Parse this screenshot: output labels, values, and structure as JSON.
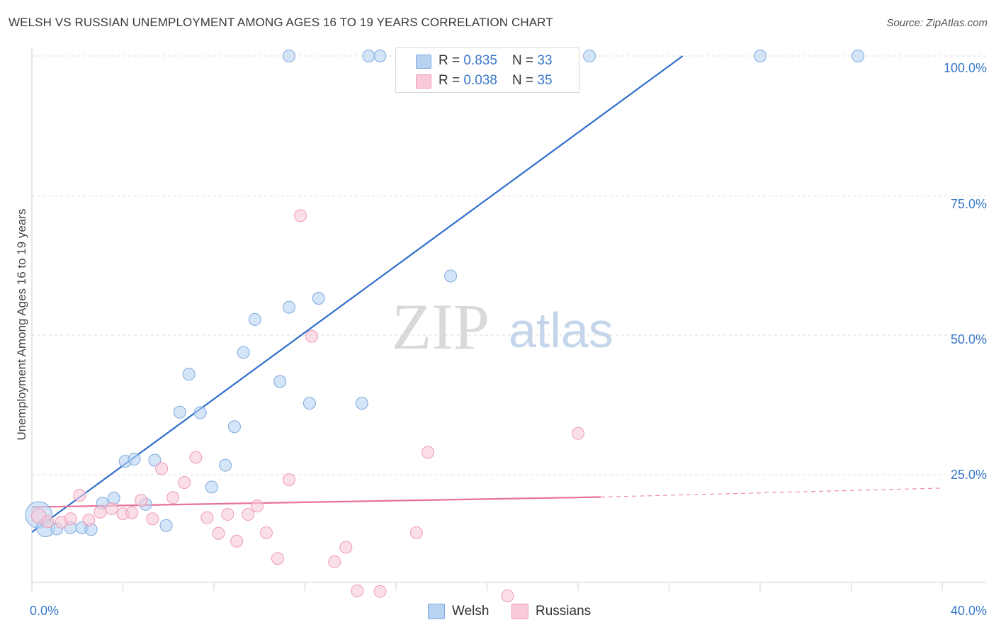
{
  "header": {
    "title": "WELSH VS RUSSIAN UNEMPLOYMENT AMONG AGES 16 TO 19 YEARS CORRELATION CHART",
    "source": "Source: ZipAtlas.com"
  },
  "watermark": {
    "zip": "ZIP",
    "atlas": "atlas"
  },
  "legend": {
    "welsh": {
      "r_label": "R = ",
      "r_value": "0.835",
      "n_label": "N = ",
      "n_value": "33"
    },
    "russians": {
      "r_label": "R = ",
      "r_value": "0.038",
      "n_label": "N = ",
      "n_value": "35"
    }
  },
  "bottom_legend": {
    "welsh": "Welsh",
    "russians": "Russians"
  },
  "colors": {
    "welsh_fill": "#b8d3f2",
    "welsh_stroke": "#7ea9de",
    "welsh_line": "#2f6fcc",
    "russians_fill": "#f9c9d8",
    "russians_stroke": "#ee9ab6",
    "russians_line": "#e8719a",
    "tick_text": "#3a78c9",
    "grid": "#dcdcdc"
  },
  "chart_data": {
    "type": "scatter",
    "title": "WELSH VS RUSSIAN UNEMPLOYMENT AMONG AGES 16 TO 19 YEARS CORRELATION CHART",
    "xlabel": "",
    "ylabel": "Unemployment Among Ages 16 to 19 years",
    "xlim": [
      0,
      40
    ],
    "ylim": [
      0,
      104
    ],
    "x_tick_labels": [
      "0.0%",
      "40.0%"
    ],
    "y_ticks": [
      25,
      50,
      75,
      100
    ],
    "y_tick_labels": [
      "25.0%",
      "50.0%",
      "75.0%",
      "100.0%"
    ],
    "grid": true,
    "legend_position": "top-center",
    "series": [
      {
        "name": "Welsh",
        "r": 0.835,
        "n": 33,
        "points": [
          [
            0.3,
            17.8,
            2.2
          ],
          [
            0.6,
            15.5,
            1.5
          ],
          [
            1.1,
            15.3,
            1
          ],
          [
            1.7,
            15.5,
            1
          ],
          [
            2.2,
            15.5,
            1
          ],
          [
            2.6,
            15.2,
            1
          ],
          [
            3.1,
            19.9,
            1
          ],
          [
            3.6,
            20.8,
            1
          ],
          [
            4.1,
            27.4,
            1
          ],
          [
            4.5,
            27.8,
            1
          ],
          [
            5.0,
            19.7,
            1
          ],
          [
            5.4,
            27.6,
            1
          ],
          [
            5.9,
            15.9,
            1
          ],
          [
            6.5,
            36.2,
            1
          ],
          [
            6.9,
            43.0,
            1
          ],
          [
            7.4,
            36.1,
            1
          ],
          [
            7.9,
            22.8,
            1
          ],
          [
            8.5,
            26.7,
            1
          ],
          [
            8.9,
            33.6,
            1
          ],
          [
            9.3,
            46.9,
            1
          ],
          [
            9.8,
            52.8,
            1
          ],
          [
            10.9,
            41.7,
            1
          ],
          [
            11.3,
            55.0,
            1
          ],
          [
            12.2,
            37.8,
            1
          ],
          [
            12.6,
            56.6,
            1
          ],
          [
            14.5,
            37.8,
            1
          ],
          [
            18.4,
            60.6,
            1
          ],
          [
            11.3,
            100.0,
            1
          ],
          [
            14.8,
            100.0,
            1
          ],
          [
            15.3,
            100.0,
            1
          ],
          [
            24.5,
            100.0,
            1
          ],
          [
            32.0,
            100.0,
            1
          ],
          [
            36.3,
            100.0,
            1
          ]
        ],
        "trend": {
          "x": [
            0.0,
            28.6
          ],
          "y": [
            14.7,
            100.0
          ],
          "dashed_extension": false
        }
      },
      {
        "name": "Russians",
        "r": 0.038,
        "n": 35,
        "points": [
          [
            0.3,
            17.6,
            1.2
          ],
          [
            0.7,
            16.6,
            1
          ],
          [
            1.3,
            16.5,
            1
          ],
          [
            1.7,
            17.1,
            1
          ],
          [
            2.1,
            21.3,
            1
          ],
          [
            2.5,
            16.9,
            1
          ],
          [
            3.0,
            18.3,
            1
          ],
          [
            3.5,
            18.9,
            1
          ],
          [
            4.0,
            18.0,
            1
          ],
          [
            4.4,
            18.2,
            1
          ],
          [
            4.8,
            20.4,
            1
          ],
          [
            5.3,
            17.1,
            1
          ],
          [
            5.7,
            26.1,
            1
          ],
          [
            6.2,
            20.9,
            1
          ],
          [
            6.7,
            23.6,
            1
          ],
          [
            7.2,
            28.1,
            1
          ],
          [
            7.7,
            17.3,
            1
          ],
          [
            8.2,
            14.5,
            1
          ],
          [
            8.6,
            17.9,
            1
          ],
          [
            9.0,
            13.1,
            1
          ],
          [
            9.5,
            17.9,
            1
          ],
          [
            9.9,
            19.4,
            1
          ],
          [
            10.3,
            14.6,
            1
          ],
          [
            10.8,
            10.0,
            1
          ],
          [
            11.3,
            24.1,
            1
          ],
          [
            11.8,
            71.4,
            1
          ],
          [
            12.3,
            49.8,
            1
          ],
          [
            13.3,
            9.4,
            1
          ],
          [
            13.8,
            12.0,
            1
          ],
          [
            14.3,
            4.2,
            1
          ],
          [
            15.3,
            4.1,
            1
          ],
          [
            16.9,
            14.6,
            1
          ],
          [
            17.4,
            29.0,
            1
          ],
          [
            20.9,
            3.3,
            1
          ],
          [
            24.0,
            32.4,
            1
          ]
        ],
        "trend": {
          "x": [
            0.0,
            25.0
          ],
          "y": [
            19.2,
            21.0
          ],
          "dashed_to_x": 40.0,
          "dashed_to_y": 22.6
        }
      }
    ]
  }
}
